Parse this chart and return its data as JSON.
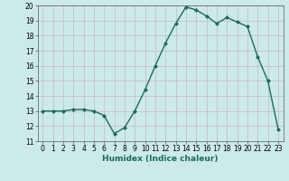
{
  "x": [
    0,
    1,
    2,
    3,
    4,
    5,
    6,
    7,
    8,
    9,
    10,
    11,
    12,
    13,
    14,
    15,
    16,
    17,
    18,
    19,
    20,
    21,
    22,
    23
  ],
  "y": [
    13.0,
    13.0,
    13.0,
    13.1,
    13.1,
    13.0,
    12.7,
    11.5,
    11.9,
    13.0,
    14.4,
    16.0,
    17.5,
    18.8,
    19.9,
    19.7,
    19.3,
    18.8,
    19.2,
    18.9,
    18.6,
    16.6,
    15.0,
    11.8
  ],
  "line_color": "#1a6b5a",
  "marker": "D",
  "marker_size": 2.0,
  "bg_color": "#cceaea",
  "grid_color": "#b0d8d8",
  "xlabel": "Humidex (Indice chaleur)",
  "ylim": [
    11,
    20
  ],
  "xlim": [
    -0.5,
    23.5
  ],
  "yticks": [
    11,
    12,
    13,
    14,
    15,
    16,
    17,
    18,
    19,
    20
  ],
  "xticks": [
    0,
    1,
    2,
    3,
    4,
    5,
    6,
    7,
    8,
    9,
    10,
    11,
    12,
    13,
    14,
    15,
    16,
    17,
    18,
    19,
    20,
    21,
    22,
    23
  ],
  "tick_fontsize": 5.5,
  "xlabel_fontsize": 6.5,
  "line_width": 1.0
}
